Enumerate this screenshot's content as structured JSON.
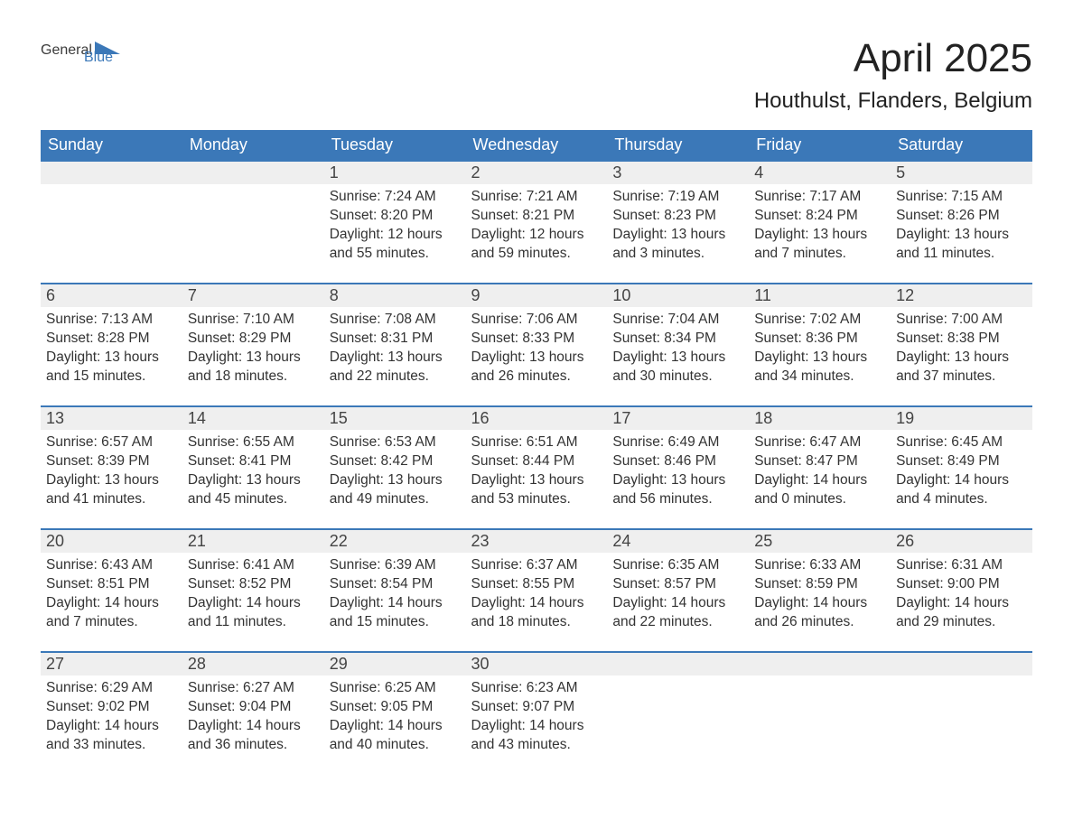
{
  "logo": {
    "word1": "General",
    "word2": "Blue"
  },
  "colors": {
    "brand_blue": "#3b78b8",
    "header_text": "#ffffff",
    "daynum_bg": "#efefef",
    "body_text": "#333333",
    "page_bg": "#ffffff"
  },
  "title": "April 2025",
  "location": "Houthulst, Flanders, Belgium",
  "weekdays": [
    "Sunday",
    "Monday",
    "Tuesday",
    "Wednesday",
    "Thursday",
    "Friday",
    "Saturday"
  ],
  "weeks": [
    {
      "days": [
        {
          "n": "",
          "sunrise": "",
          "sunset": "",
          "daylight": ""
        },
        {
          "n": "",
          "sunrise": "",
          "sunset": "",
          "daylight": ""
        },
        {
          "n": "1",
          "sunrise": "Sunrise: 7:24 AM",
          "sunset": "Sunset: 8:20 PM",
          "daylight": "Daylight: 12 hours and 55 minutes."
        },
        {
          "n": "2",
          "sunrise": "Sunrise: 7:21 AM",
          "sunset": "Sunset: 8:21 PM",
          "daylight": "Daylight: 12 hours and 59 minutes."
        },
        {
          "n": "3",
          "sunrise": "Sunrise: 7:19 AM",
          "sunset": "Sunset: 8:23 PM",
          "daylight": "Daylight: 13 hours and 3 minutes."
        },
        {
          "n": "4",
          "sunrise": "Sunrise: 7:17 AM",
          "sunset": "Sunset: 8:24 PM",
          "daylight": "Daylight: 13 hours and 7 minutes."
        },
        {
          "n": "5",
          "sunrise": "Sunrise: 7:15 AM",
          "sunset": "Sunset: 8:26 PM",
          "daylight": "Daylight: 13 hours and 11 minutes."
        }
      ]
    },
    {
      "days": [
        {
          "n": "6",
          "sunrise": "Sunrise: 7:13 AM",
          "sunset": "Sunset: 8:28 PM",
          "daylight": "Daylight: 13 hours and 15 minutes."
        },
        {
          "n": "7",
          "sunrise": "Sunrise: 7:10 AM",
          "sunset": "Sunset: 8:29 PM",
          "daylight": "Daylight: 13 hours and 18 minutes."
        },
        {
          "n": "8",
          "sunrise": "Sunrise: 7:08 AM",
          "sunset": "Sunset: 8:31 PM",
          "daylight": "Daylight: 13 hours and 22 minutes."
        },
        {
          "n": "9",
          "sunrise": "Sunrise: 7:06 AM",
          "sunset": "Sunset: 8:33 PM",
          "daylight": "Daylight: 13 hours and 26 minutes."
        },
        {
          "n": "10",
          "sunrise": "Sunrise: 7:04 AM",
          "sunset": "Sunset: 8:34 PM",
          "daylight": "Daylight: 13 hours and 30 minutes."
        },
        {
          "n": "11",
          "sunrise": "Sunrise: 7:02 AM",
          "sunset": "Sunset: 8:36 PM",
          "daylight": "Daylight: 13 hours and 34 minutes."
        },
        {
          "n": "12",
          "sunrise": "Sunrise: 7:00 AM",
          "sunset": "Sunset: 8:38 PM",
          "daylight": "Daylight: 13 hours and 37 minutes."
        }
      ]
    },
    {
      "days": [
        {
          "n": "13",
          "sunrise": "Sunrise: 6:57 AM",
          "sunset": "Sunset: 8:39 PM",
          "daylight": "Daylight: 13 hours and 41 minutes."
        },
        {
          "n": "14",
          "sunrise": "Sunrise: 6:55 AM",
          "sunset": "Sunset: 8:41 PM",
          "daylight": "Daylight: 13 hours and 45 minutes."
        },
        {
          "n": "15",
          "sunrise": "Sunrise: 6:53 AM",
          "sunset": "Sunset: 8:42 PM",
          "daylight": "Daylight: 13 hours and 49 minutes."
        },
        {
          "n": "16",
          "sunrise": "Sunrise: 6:51 AM",
          "sunset": "Sunset: 8:44 PM",
          "daylight": "Daylight: 13 hours and 53 minutes."
        },
        {
          "n": "17",
          "sunrise": "Sunrise: 6:49 AM",
          "sunset": "Sunset: 8:46 PM",
          "daylight": "Daylight: 13 hours and 56 minutes."
        },
        {
          "n": "18",
          "sunrise": "Sunrise: 6:47 AM",
          "sunset": "Sunset: 8:47 PM",
          "daylight": "Daylight: 14 hours and 0 minutes."
        },
        {
          "n": "19",
          "sunrise": "Sunrise: 6:45 AM",
          "sunset": "Sunset: 8:49 PM",
          "daylight": "Daylight: 14 hours and 4 minutes."
        }
      ]
    },
    {
      "days": [
        {
          "n": "20",
          "sunrise": "Sunrise: 6:43 AM",
          "sunset": "Sunset: 8:51 PM",
          "daylight": "Daylight: 14 hours and 7 minutes."
        },
        {
          "n": "21",
          "sunrise": "Sunrise: 6:41 AM",
          "sunset": "Sunset: 8:52 PM",
          "daylight": "Daylight: 14 hours and 11 minutes."
        },
        {
          "n": "22",
          "sunrise": "Sunrise: 6:39 AM",
          "sunset": "Sunset: 8:54 PM",
          "daylight": "Daylight: 14 hours and 15 minutes."
        },
        {
          "n": "23",
          "sunrise": "Sunrise: 6:37 AM",
          "sunset": "Sunset: 8:55 PM",
          "daylight": "Daylight: 14 hours and 18 minutes."
        },
        {
          "n": "24",
          "sunrise": "Sunrise: 6:35 AM",
          "sunset": "Sunset: 8:57 PM",
          "daylight": "Daylight: 14 hours and 22 minutes."
        },
        {
          "n": "25",
          "sunrise": "Sunrise: 6:33 AM",
          "sunset": "Sunset: 8:59 PM",
          "daylight": "Daylight: 14 hours and 26 minutes."
        },
        {
          "n": "26",
          "sunrise": "Sunrise: 6:31 AM",
          "sunset": "Sunset: 9:00 PM",
          "daylight": "Daylight: 14 hours and 29 minutes."
        }
      ]
    },
    {
      "days": [
        {
          "n": "27",
          "sunrise": "Sunrise: 6:29 AM",
          "sunset": "Sunset: 9:02 PM",
          "daylight": "Daylight: 14 hours and 33 minutes."
        },
        {
          "n": "28",
          "sunrise": "Sunrise: 6:27 AM",
          "sunset": "Sunset: 9:04 PM",
          "daylight": "Daylight: 14 hours and 36 minutes."
        },
        {
          "n": "29",
          "sunrise": "Sunrise: 6:25 AM",
          "sunset": "Sunset: 9:05 PM",
          "daylight": "Daylight: 14 hours and 40 minutes."
        },
        {
          "n": "30",
          "sunrise": "Sunrise: 6:23 AM",
          "sunset": "Sunset: 9:07 PM",
          "daylight": "Daylight: 14 hours and 43 minutes."
        },
        {
          "n": "",
          "sunrise": "",
          "sunset": "",
          "daylight": ""
        },
        {
          "n": "",
          "sunrise": "",
          "sunset": "",
          "daylight": ""
        },
        {
          "n": "",
          "sunrise": "",
          "sunset": "",
          "daylight": ""
        }
      ]
    }
  ]
}
